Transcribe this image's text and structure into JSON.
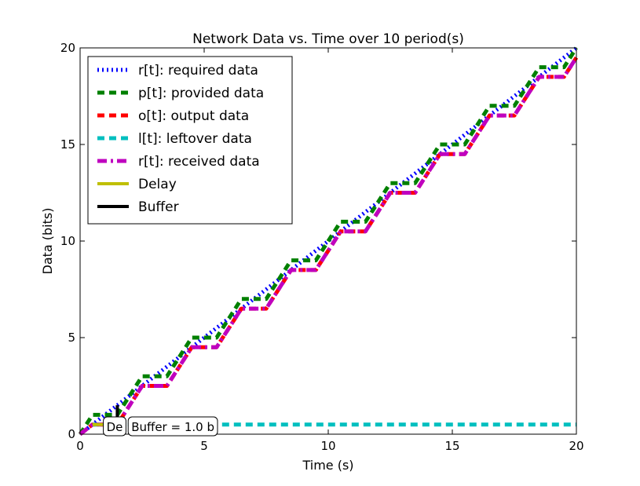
{
  "chart_data": {
    "type": "line",
    "title": "Network Data vs. Time over 10 period(s)",
    "xlabel": "Time (s)",
    "ylabel": "Data (bits)",
    "xlim": [
      0,
      20
    ],
    "ylim": [
      0,
      20
    ],
    "xticks": [
      "0",
      "5",
      "10",
      "15",
      "20"
    ],
    "yticks": [
      "0",
      "5",
      "10",
      "15",
      "20"
    ],
    "grid": false,
    "legend_position": "top-left",
    "series": [
      {
        "name": "r[t]: required data",
        "color": "#0000ff",
        "style": "dotted",
        "x": [
          0,
          20
        ],
        "y": [
          0,
          20
        ]
      },
      {
        "name": "p[t]: provided data",
        "color": "#008000",
        "style": "dashed",
        "x": [
          0,
          0.5,
          1,
          1.5,
          2.5,
          3.5,
          4.5,
          5.5,
          6.5,
          7.5,
          8.5,
          9.5,
          10.5,
          11.5,
          12.5,
          13.5,
          14.5,
          15.5,
          16.5,
          17.5,
          18.5,
          19.5,
          20
        ],
        "y": [
          0,
          1,
          1,
          1,
          3,
          3,
          5,
          5,
          7,
          7,
          9,
          9,
          11,
          11,
          13,
          13,
          15,
          15,
          17,
          17,
          19,
          19,
          20
        ]
      },
      {
        "name": "o[t]: output data",
        "color": "#ff0000",
        "style": "dashed",
        "x": [
          0,
          0.5,
          1.5,
          2.5,
          3.5,
          4.5,
          5.5,
          6.5,
          7.5,
          8.5,
          9.5,
          10.5,
          11.5,
          12.5,
          13.5,
          14.5,
          15.5,
          16.5,
          17.5,
          18.5,
          19.5,
          20
        ],
        "y": [
          0,
          0.5,
          0.5,
          2.5,
          2.5,
          4.5,
          4.5,
          6.5,
          6.5,
          8.5,
          8.5,
          10.5,
          10.5,
          12.5,
          12.5,
          14.5,
          14.5,
          16.5,
          16.5,
          18.5,
          18.5,
          19.5
        ]
      },
      {
        "name": "l[t]: leftover data",
        "color": "#00bfbf",
        "style": "dashed",
        "x": [
          0.5,
          20
        ],
        "y": [
          0.5,
          0.5
        ]
      },
      {
        "name": "r[t]: received data",
        "color": "#bf00bf",
        "style": "dashdot",
        "x": [
          0,
          0.5,
          1.5,
          2.5,
          3.5,
          4.5,
          5.5,
          6.5,
          7.5,
          8.5,
          9.5,
          10.5,
          11.5,
          12.5,
          13.5,
          14.5,
          15.5,
          16.5,
          17.5,
          18.5,
          19.5,
          20
        ],
        "y": [
          0,
          0.5,
          0.5,
          2.5,
          2.5,
          4.5,
          4.5,
          6.5,
          6.5,
          8.5,
          8.5,
          10.5,
          10.5,
          12.5,
          12.5,
          14.5,
          14.5,
          16.5,
          16.5,
          18.5,
          18.5,
          19.5
        ]
      },
      {
        "name": "Delay",
        "color": "#bfbf00",
        "style": "solid",
        "x": [
          0.5,
          1.5
        ],
        "y": [
          0.5,
          0.5
        ]
      },
      {
        "name": "Buffer",
        "color": "#000000",
        "style": "solid",
        "x": [
          1.5,
          1.5
        ],
        "y": [
          0.5,
          1.5
        ]
      }
    ],
    "annotations": [
      {
        "text": "De",
        "x": 1,
        "y": 0
      },
      {
        "text": "Buffer = 1.0 b",
        "x": 2,
        "y": 0
      }
    ]
  }
}
